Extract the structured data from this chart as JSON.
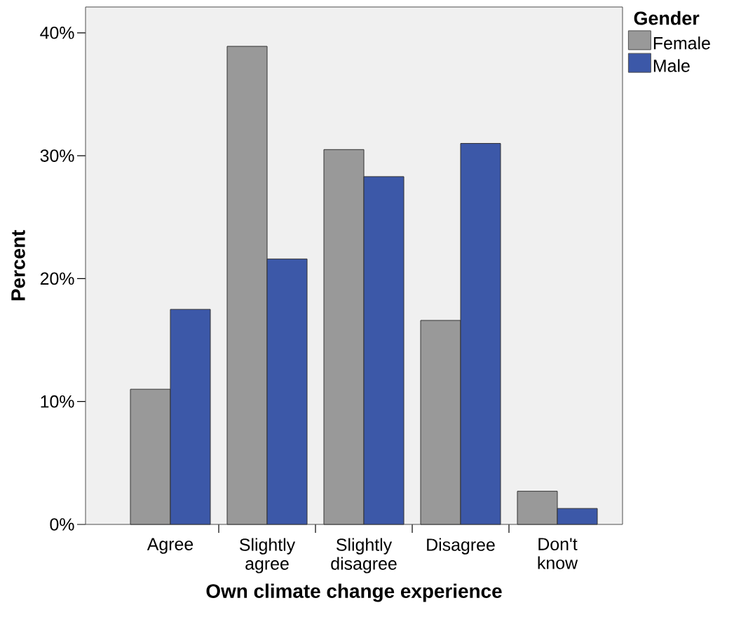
{
  "chart_data": {
    "type": "bar",
    "xlabel": "Own climate change experience",
    "ylabel": "Percent",
    "legend_title": "Gender",
    "legend": "top right",
    "categories": [
      "Agree",
      "Slightly agree",
      "Slightly disagree",
      "Disagree",
      "Don't know"
    ],
    "series": [
      {
        "name": "Female",
        "color": "#999999",
        "values": [
          11.0,
          38.9,
          30.5,
          16.6,
          2.7
        ]
      },
      {
        "name": "Male",
        "color": "#3c58a8",
        "values": [
          17.5,
          21.6,
          28.3,
          31.0,
          1.3
        ]
      }
    ],
    "ylim": [
      0,
      42.1
    ],
    "yticks": [
      {
        "value": 0,
        "label": "0%"
      },
      {
        "value": 10,
        "label": "10%"
      },
      {
        "value": 20,
        "label": "20%"
      },
      {
        "value": 30,
        "label": "30%"
      },
      {
        "value": 40,
        "label": "40%"
      }
    ]
  }
}
